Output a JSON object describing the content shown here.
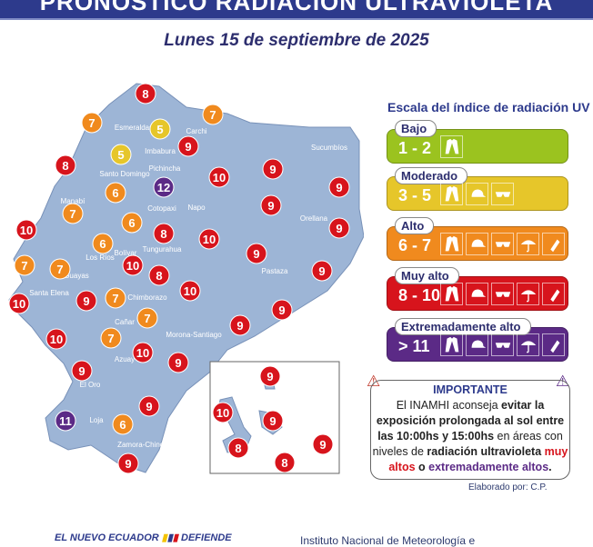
{
  "header": {
    "title": "PRONÓSTICO RADIACIÓN ULTRAVIOLETA",
    "date": "Lunes 15 de septiembre de 2025"
  },
  "colors": {
    "header": "#2d3a8c",
    "map_fill": "#9db5d6",
    "bajo": "#9bc31f",
    "moderado": "#e6c62a",
    "alto": "#f08a1e",
    "muy_alto": "#d7141c",
    "extremo": "#5b2a86"
  },
  "map": {
    "regions": [
      "Esmeraldas",
      "Carchi",
      "Imbabura",
      "Pichincha",
      "Santo Domingo",
      "Manabí",
      "Napo",
      "Cotopaxi",
      "Sucumbíos",
      "Orellana",
      "Tungurahua",
      "Bolívar",
      "Los Ríos",
      "Guayas",
      "Pastaza",
      "Santa Elena",
      "Chimborazo",
      "Cañar",
      "Morona-Santiago",
      "Azuay",
      "El Oro",
      "Loja",
      "Zamora-Chinchipe"
    ],
    "uv_values": [
      8,
      7,
      5,
      7,
      5,
      9,
      8,
      10,
      9,
      12,
      6,
      9,
      9,
      7,
      6,
      9,
      10,
      8,
      10,
      6,
      9,
      7,
      7,
      10,
      8,
      10,
      9,
      10,
      9,
      7,
      9,
      7,
      9,
      10,
      7,
      10,
      9,
      9,
      9,
      11,
      6,
      9
    ],
    "galapagos_values": [
      9,
      10,
      9,
      8,
      9,
      8
    ]
  },
  "legend": {
    "title": "Escala del índice de radiación UV",
    "levels": [
      {
        "name": "Bajo",
        "range": "1 - 2",
        "icons": [
          "shirt-icon"
        ]
      },
      {
        "name": "Moderado",
        "range": "3 - 5",
        "icons": [
          "shirt-icon",
          "cap-icon",
          "sunglasses-icon"
        ]
      },
      {
        "name": "Alto",
        "range": "6 - 7",
        "icons": [
          "shirt-icon",
          "cap-icon",
          "sunglasses-icon",
          "umbrella-icon",
          "sunscreen-icon"
        ]
      },
      {
        "name": "Muy alto",
        "range": "8 - 10",
        "icons": [
          "shirt-icon",
          "cap-icon",
          "sunglasses-icon",
          "umbrella-icon",
          "sunscreen-icon"
        ]
      },
      {
        "name": "Extremadamente alto",
        "range": "> 11",
        "icons": [
          "shirt-icon",
          "cap-icon",
          "sunglasses-icon",
          "umbrella-icon",
          "sunscreen-icon"
        ]
      }
    ]
  },
  "important": {
    "title": "IMPORTANTE",
    "p1": "El INAMHI aconseja ",
    "b1": "evitar la exposición prolongada al sol entre las 10:00hs y 15:00hs",
    "p2": " en áreas con niveles de ",
    "b2": "radiación ultravioleta ",
    "red": "muy altos",
    "p3": " o ",
    "purple": "extremadamente altos",
    "end": "."
  },
  "credit": "Elaborado por: C.P.",
  "footer": {
    "logo1": "EL NUEVO ECUADOR",
    "logo2": "DEFIENDE",
    "institute": "Instituto Nacional de Meteorología e"
  }
}
